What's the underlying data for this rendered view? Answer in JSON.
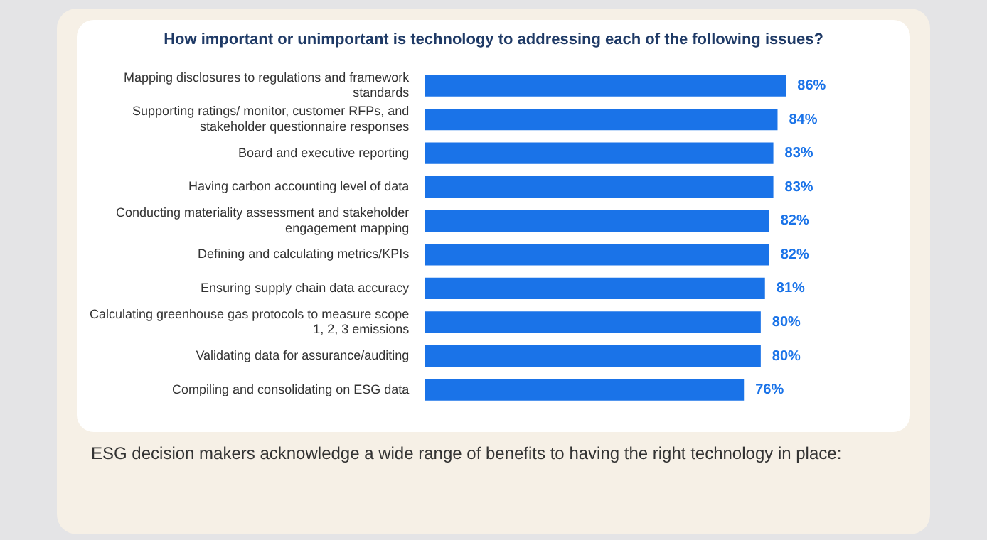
{
  "chart_data": {
    "type": "bar",
    "orientation": "horizontal",
    "title": "How important or unimportant is technology to addressing each of the following issues?",
    "categories": [
      "Mapping disclosures to regulations and framework standards",
      "Supporting ratings/ monitor, customer RFPs, and stakeholder questionnaire responses",
      "Board and executive reporting",
      "Having carbon accounting level of data",
      "Conducting materiality assessment and stakeholder engagement mapping",
      "Defining and calculating metrics/KPIs",
      "Ensuring supply chain data accuracy",
      "Calculating greenhouse gas protocols to measure scope 1, 2, 3 emissions",
      "Validating data for assurance/auditing",
      "Compiling and consolidating on ESG data"
    ],
    "values": [
      86,
      84,
      83,
      83,
      82,
      82,
      81,
      80,
      80,
      76
    ],
    "value_labels": [
      "86%",
      "84%",
      "83%",
      "83%",
      "82%",
      "82%",
      "81%",
      "80%",
      "80%",
      "76%"
    ],
    "color": "#1a73e8",
    "annotations": [
      "ESG decision makers acknowledge a wide range of benefits to having the right technology in place:"
    ]
  }
}
